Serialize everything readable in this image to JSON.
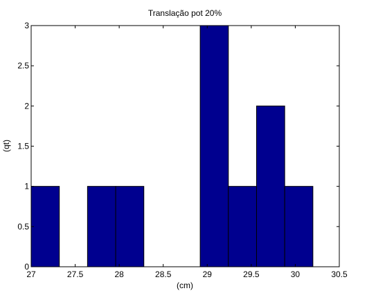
{
  "chart_data": {
    "type": "bar",
    "title": "Translação pot 20%",
    "xlabel": "(cm)",
    "ylabel": "(qt)",
    "xlim": [
      27,
      30.5
    ],
    "ylim": [
      0,
      3
    ],
    "xticks": [
      "27",
      "27.5",
      "28",
      "28.5",
      "29",
      "29.5",
      "30",
      "30.5"
    ],
    "yticks": [
      "0",
      "0.5",
      "1",
      "1.5",
      "2",
      "2.5",
      "3"
    ],
    "bins": [
      {
        "x0": 27.0,
        "x1": 27.32,
        "value": 1
      },
      {
        "x0": 27.32,
        "x1": 27.64,
        "value": 0
      },
      {
        "x0": 27.64,
        "x1": 27.96,
        "value": 1
      },
      {
        "x0": 27.96,
        "x1": 28.28,
        "value": 1
      },
      {
        "x0": 28.28,
        "x1": 28.6,
        "value": 0
      },
      {
        "x0": 28.6,
        "x1": 28.92,
        "value": 0
      },
      {
        "x0": 28.92,
        "x1": 29.24,
        "value": 3
      },
      {
        "x0": 29.24,
        "x1": 29.56,
        "value": 1
      },
      {
        "x0": 29.56,
        "x1": 29.88,
        "value": 2
      },
      {
        "x0": 29.88,
        "x1": 30.2,
        "value": 1
      }
    ],
    "bar_color": "#00008f",
    "grid": false
  }
}
